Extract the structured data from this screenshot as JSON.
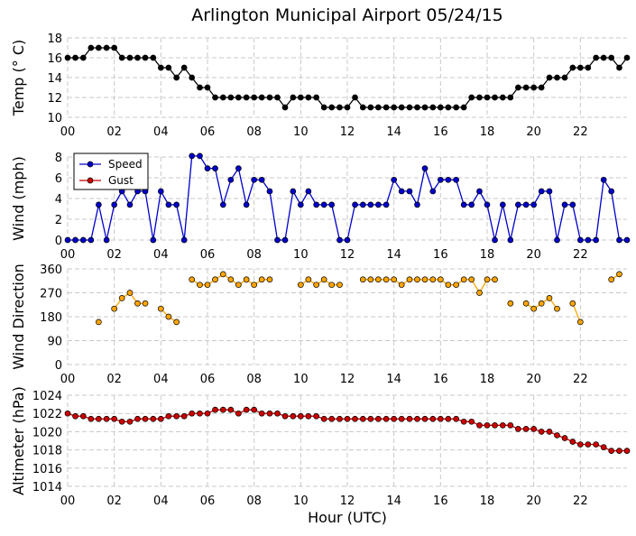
{
  "chart_data": [
    {
      "type": "line",
      "title": "Arlington Municipal Airport 05/24/15",
      "ylabel": "Temp ($^\\circ$C)",
      "ylabel_display": "Temp (° C)",
      "ylim": [
        10,
        18
      ],
      "yticks": [
        "10",
        "12",
        "14",
        "16",
        "18"
      ],
      "grid": true,
      "series": [
        {
          "color": "#000000",
          "x": [
            0.0,
            0.33,
            0.67,
            1.0,
            1.33,
            1.67,
            2.0,
            2.33,
            2.67,
            3.0,
            3.33,
            3.67,
            4.0,
            4.33,
            4.67,
            5.0,
            5.33,
            5.67,
            6.0,
            6.33,
            6.67,
            7.0,
            7.33,
            7.67,
            8.0,
            8.33,
            8.67,
            9.0,
            9.33,
            9.67,
            10.0,
            10.33,
            10.67,
            11.0,
            11.33,
            11.67,
            12.0,
            12.33,
            12.67,
            13.0,
            13.33,
            13.67,
            14.0,
            14.33,
            14.67,
            15.0,
            15.33,
            15.67,
            16.0,
            16.33,
            16.67,
            17.0,
            17.33,
            17.67,
            18.0,
            18.33,
            18.67,
            19.0,
            19.33,
            19.67,
            20.0,
            20.33,
            20.67,
            21.0,
            21.33,
            21.67,
            22.0,
            22.33,
            22.67,
            23.0,
            23.33,
            23.67,
            24.0
          ],
          "y": [
            16,
            16,
            16,
            17,
            17,
            17,
            17,
            16,
            16,
            16,
            16,
            16,
            15,
            15,
            14,
            15,
            14,
            13,
            13,
            12,
            12,
            12,
            12,
            12,
            12,
            12,
            12,
            12,
            11,
            12,
            12,
            12,
            12,
            11,
            11,
            11,
            11,
            12,
            11,
            11,
            11,
            11,
            11,
            11,
            11,
            11,
            11,
            11,
            11,
            11,
            11,
            11,
            12,
            12,
            12,
            12,
            12,
            12,
            13,
            13,
            13,
            13,
            14,
            14,
            14,
            15,
            15,
            15,
            16,
            16,
            16,
            15,
            16
          ]
        }
      ]
    },
    {
      "type": "line",
      "ylabel": "Wind (mph)",
      "ylim": [
        0,
        8
      ],
      "yticks": [
        "0",
        "2",
        "4",
        "6",
        "8"
      ],
      "grid": true,
      "legend": "top-left",
      "series": [
        {
          "name": "Speed",
          "color": "#0000cc",
          "x": [
            0.0,
            0.33,
            0.67,
            1.0,
            1.33,
            1.67,
            2.0,
            2.33,
            2.67,
            3.0,
            3.33,
            3.67,
            4.0,
            4.33,
            4.67,
            5.0,
            5.33,
            5.67,
            6.0,
            6.33,
            6.67,
            7.0,
            7.33,
            7.67,
            8.0,
            8.33,
            8.67,
            9.0,
            9.33,
            9.67,
            10.0,
            10.33,
            10.67,
            11.0,
            11.33,
            11.67,
            12.0,
            12.33,
            12.67,
            13.0,
            13.33,
            13.67,
            14.0,
            14.33,
            14.67,
            15.0,
            15.33,
            15.67,
            16.0,
            16.33,
            16.67,
            17.0,
            17.33,
            17.67,
            18.0,
            18.33,
            18.67,
            19.0,
            19.33,
            19.67,
            20.0,
            20.33,
            20.67,
            21.0,
            21.33,
            21.67,
            22.0,
            22.33,
            22.67,
            23.0,
            23.33,
            23.67,
            24.0
          ],
          "y": [
            0,
            0,
            0,
            0,
            3.4,
            0,
            3.4,
            4.7,
            3.4,
            4.7,
            4.7,
            0,
            4.7,
            3.4,
            3.4,
            0,
            8.1,
            8.1,
            6.9,
            6.9,
            3.4,
            5.8,
            6.9,
            3.4,
            5.8,
            5.8,
            4.7,
            0,
            0,
            4.7,
            3.4,
            4.7,
            3.4,
            3.4,
            3.4,
            0,
            0,
            3.4,
            3.4,
            3.4,
            3.4,
            3.4,
            5.8,
            4.7,
            4.7,
            3.4,
            6.9,
            4.7,
            5.8,
            5.8,
            5.8,
            3.4,
            3.4,
            4.7,
            3.4,
            0,
            3.4,
            0,
            3.4,
            3.4,
            3.4,
            4.7,
            4.7,
            0,
            3.4,
            3.4,
            0,
            0,
            0,
            5.8,
            4.7,
            0,
            0
          ]
        },
        {
          "name": "Gust",
          "color": "#cc0000",
          "x": [],
          "y": []
        }
      ]
    },
    {
      "type": "scatter",
      "ylabel": "Wind Direction",
      "ylim": [
        0,
        360
      ],
      "yticks": [
        "0",
        "90",
        "180",
        "270",
        "360"
      ],
      "grid": true,
      "series": [
        {
          "color": "#ffa500",
          "segments": [
            {
              "x": [
                1.33
              ],
              "y": [
                160
              ]
            },
            {
              "x": [
                2.0,
                2.33,
                2.67,
                3.0,
                3.33
              ],
              "y": [
                210,
                250,
                270,
                230,
                230
              ]
            },
            {
              "x": [
                4.0,
                4.33,
                4.67
              ],
              "y": [
                210,
                180,
                160
              ]
            },
            {
              "x": [
                5.33,
                5.67,
                6.0,
                6.33,
                6.67,
                7.0,
                7.33,
                7.67,
                8.0,
                8.33,
                8.67
              ],
              "y": [
                320,
                300,
                300,
                320,
                340,
                320,
                300,
                320,
                300,
                320,
                320
              ]
            },
            {
              "x": [
                10.0,
                10.33,
                10.67,
                11.0,
                11.33,
                11.67
              ],
              "y": [
                300,
                320,
                300,
                320,
                300,
                300
              ]
            },
            {
              "x": [
                12.67,
                13.0,
                13.33,
                13.67,
                14.0,
                14.33,
                14.67,
                15.0,
                15.33,
                15.67,
                16.0,
                16.33,
                16.67,
                17.0,
                17.33,
                17.67,
                18.0,
                18.33
              ],
              "y": [
                320,
                320,
                320,
                320,
                320,
                300,
                320,
                320,
                320,
                320,
                320,
                300,
                300,
                320,
                320,
                270,
                320,
                320
              ]
            },
            {
              "x": [
                19.0
              ],
              "y": [
                230
              ]
            },
            {
              "x": [
                19.67,
                20.0,
                20.33,
                20.67,
                21.0
              ],
              "y": [
                230,
                210,
                230,
                250,
                210
              ]
            },
            {
              "x": [
                21.67,
                22.0
              ],
              "y": [
                230,
                160
              ]
            },
            {
              "x": [
                23.33,
                23.67
              ],
              "y": [
                320,
                340
              ]
            }
          ]
        }
      ]
    },
    {
      "type": "line",
      "ylabel": "Altimeter (hPa)",
      "xlabel": "Hour (UTC)",
      "ylim": [
        1014,
        1024
      ],
      "yticks": [
        "1014",
        "1016",
        "1018",
        "1020",
        "1022",
        "1024"
      ],
      "grid": true,
      "series": [
        {
          "color": "#cc0000",
          "x": [
            0.0,
            0.33,
            0.67,
            1.0,
            1.33,
            1.67,
            2.0,
            2.33,
            2.67,
            3.0,
            3.33,
            3.67,
            4.0,
            4.33,
            4.67,
            5.0,
            5.33,
            5.67,
            6.0,
            6.33,
            6.67,
            7.0,
            7.33,
            7.67,
            8.0,
            8.33,
            8.67,
            9.0,
            9.33,
            9.67,
            10.0,
            10.33,
            10.67,
            11.0,
            11.33,
            11.67,
            12.0,
            12.33,
            12.67,
            13.0,
            13.33,
            13.67,
            14.0,
            14.33,
            14.67,
            15.0,
            15.33,
            15.67,
            16.0,
            16.33,
            16.67,
            17.0,
            17.33,
            17.67,
            18.0,
            18.33,
            18.67,
            19.0,
            19.33,
            19.67,
            20.0,
            20.33,
            20.67,
            21.0,
            21.33,
            21.67,
            22.0,
            22.33,
            22.67,
            23.0,
            23.33,
            23.67,
            24.0
          ],
          "y": [
            1022.0,
            1021.7,
            1021.7,
            1021.4,
            1021.4,
            1021.4,
            1021.4,
            1021.1,
            1021.1,
            1021.4,
            1021.4,
            1021.4,
            1021.4,
            1021.7,
            1021.7,
            1021.7,
            1022.0,
            1022.0,
            1022.0,
            1022.4,
            1022.4,
            1022.4,
            1022.0,
            1022.4,
            1022.4,
            1022.0,
            1022.0,
            1022.0,
            1021.7,
            1021.7,
            1021.7,
            1021.7,
            1021.7,
            1021.4,
            1021.4,
            1021.4,
            1021.4,
            1021.4,
            1021.4,
            1021.4,
            1021.4,
            1021.4,
            1021.4,
            1021.4,
            1021.4,
            1021.4,
            1021.4,
            1021.4,
            1021.4,
            1021.4,
            1021.4,
            1021.1,
            1021.1,
            1020.7,
            1020.7,
            1020.7,
            1020.7,
            1020.7,
            1020.3,
            1020.3,
            1020.3,
            1020.0,
            1020.0,
            1019.6,
            1019.3,
            1018.9,
            1018.6,
            1018.6,
            1018.6,
            1018.3,
            1017.9,
            1017.9,
            1017.9
          ]
        }
      ]
    }
  ],
  "x_axis": {
    "range": [
      0,
      24
    ],
    "ticks": [
      0,
      2,
      4,
      6,
      8,
      10,
      12,
      14,
      16,
      18,
      20,
      22
    ],
    "tick_labels": [
      "00",
      "02",
      "04",
      "06",
      "08",
      "10",
      "12",
      "14",
      "16",
      "18",
      "20",
      "22"
    ]
  }
}
